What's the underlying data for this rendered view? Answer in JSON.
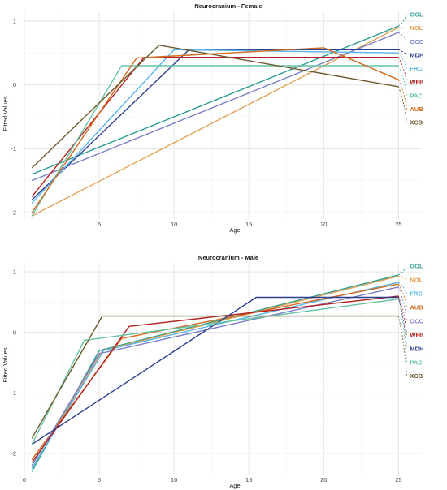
{
  "chart_data": [
    {
      "type": "line",
      "title": "Neurocranium - Female",
      "xlabel": "Age",
      "ylabel": "Fitted Values",
      "xlim": [
        0,
        26.5
      ],
      "ylim": [
        -2.1,
        1.15
      ],
      "xticks": [
        "5",
        "10",
        "15",
        "20",
        "25"
      ],
      "yticks": [
        "-2",
        "-1",
        "0",
        "1"
      ],
      "grid": true,
      "legend": "right, end-of-line labels",
      "series": [
        {
          "name": "GOL",
          "color": "#2a9d8f",
          "x": [
            0.5,
            25
          ],
          "y": [
            -1.4,
            0.92
          ]
        },
        {
          "name": "NOL",
          "color": "#e0a458",
          "x": [
            0.5,
            25
          ],
          "y": [
            -2.05,
            0.9
          ]
        },
        {
          "name": "OCC",
          "color": "#7b7fc4",
          "x": [
            0.5,
            25
          ],
          "y": [
            -1.5,
            0.82
          ]
        },
        {
          "name": "MDH",
          "color": "#2f3f8f",
          "x": [
            0.5,
            11,
            25
          ],
          "y": [
            -1.8,
            0.55,
            0.55
          ]
        },
        {
          "name": "FRC",
          "color": "#56b4e9",
          "x": [
            0.5,
            10,
            25
          ],
          "y": [
            -1.85,
            0.55,
            0.5
          ]
        },
        {
          "name": "WFB",
          "color": "#b22222",
          "x": [
            0.5,
            8,
            25
          ],
          "y": [
            -1.75,
            0.43,
            0.43
          ]
        },
        {
          "name": "PAC",
          "color": "#66c2a5",
          "x": [
            0.5,
            6.5,
            25
          ],
          "y": [
            -2.05,
            0.3,
            0.3
          ]
        },
        {
          "name": "AUB",
          "color": "#d2691e",
          "x": [
            0.5,
            7.5,
            20,
            25
          ],
          "y": [
            -2.0,
            0.42,
            0.58,
            0.08
          ]
        },
        {
          "name": "XCB",
          "color": "#6b5a2e",
          "x": [
            0.5,
            9,
            25
          ],
          "y": [
            -1.3,
            0.62,
            -0.03
          ]
        }
      ]
    },
    {
      "type": "line",
      "title": "Neurocranium - Male",
      "xlabel": "Age",
      "ylabel": "Fitted Values",
      "xlim": [
        0,
        26.5
      ],
      "ylim": [
        -2.35,
        1.15
      ],
      "xticks": [
        "0",
        "5",
        "10",
        "15",
        "20",
        "25"
      ],
      "yticks": [
        "-2",
        "-1",
        "0",
        "1"
      ],
      "grid": true,
      "legend": "right, end-of-line labels",
      "series": [
        {
          "name": "GOL",
          "color": "#2a9d8f",
          "x": [
            0.5,
            5,
            25
          ],
          "y": [
            -2.3,
            -0.3,
            0.95
          ]
        },
        {
          "name": "NOL",
          "color": "#e0a458",
          "x": [
            0.5,
            5.2,
            25
          ],
          "y": [
            -2.25,
            -0.3,
            0.93
          ]
        },
        {
          "name": "FRC",
          "color": "#56b4e9",
          "x": [
            0.5,
            5.3,
            25
          ],
          "y": [
            -2.25,
            -0.3,
            0.83
          ]
        },
        {
          "name": "AUB",
          "color": "#d2691e",
          "x": [
            0.5,
            6.5,
            25
          ],
          "y": [
            -2.1,
            -0.1,
            0.8
          ]
        },
        {
          "name": "OCC",
          "color": "#7b7fc4",
          "x": [
            0.5,
            5,
            25
          ],
          "y": [
            -2.2,
            -0.35,
            0.75
          ]
        },
        {
          "name": "WFB",
          "color": "#b22222",
          "x": [
            0.5,
            7,
            25
          ],
          "y": [
            -2.15,
            0.1,
            0.6
          ]
        },
        {
          "name": "MDH",
          "color": "#2f3f8f",
          "x": [
            0.5,
            15.5,
            25
          ],
          "y": [
            -1.85,
            0.58,
            0.58
          ]
        },
        {
          "name": "PAC",
          "color": "#66c2a5",
          "x": [
            0.5,
            4,
            25
          ],
          "y": [
            -1.85,
            -0.13,
            0.55
          ]
        },
        {
          "name": "XCB",
          "color": "#6b5a2e",
          "x": [
            0.5,
            5.2,
            25
          ],
          "y": [
            -1.75,
            0.27,
            0.27
          ]
        }
      ]
    }
  ]
}
